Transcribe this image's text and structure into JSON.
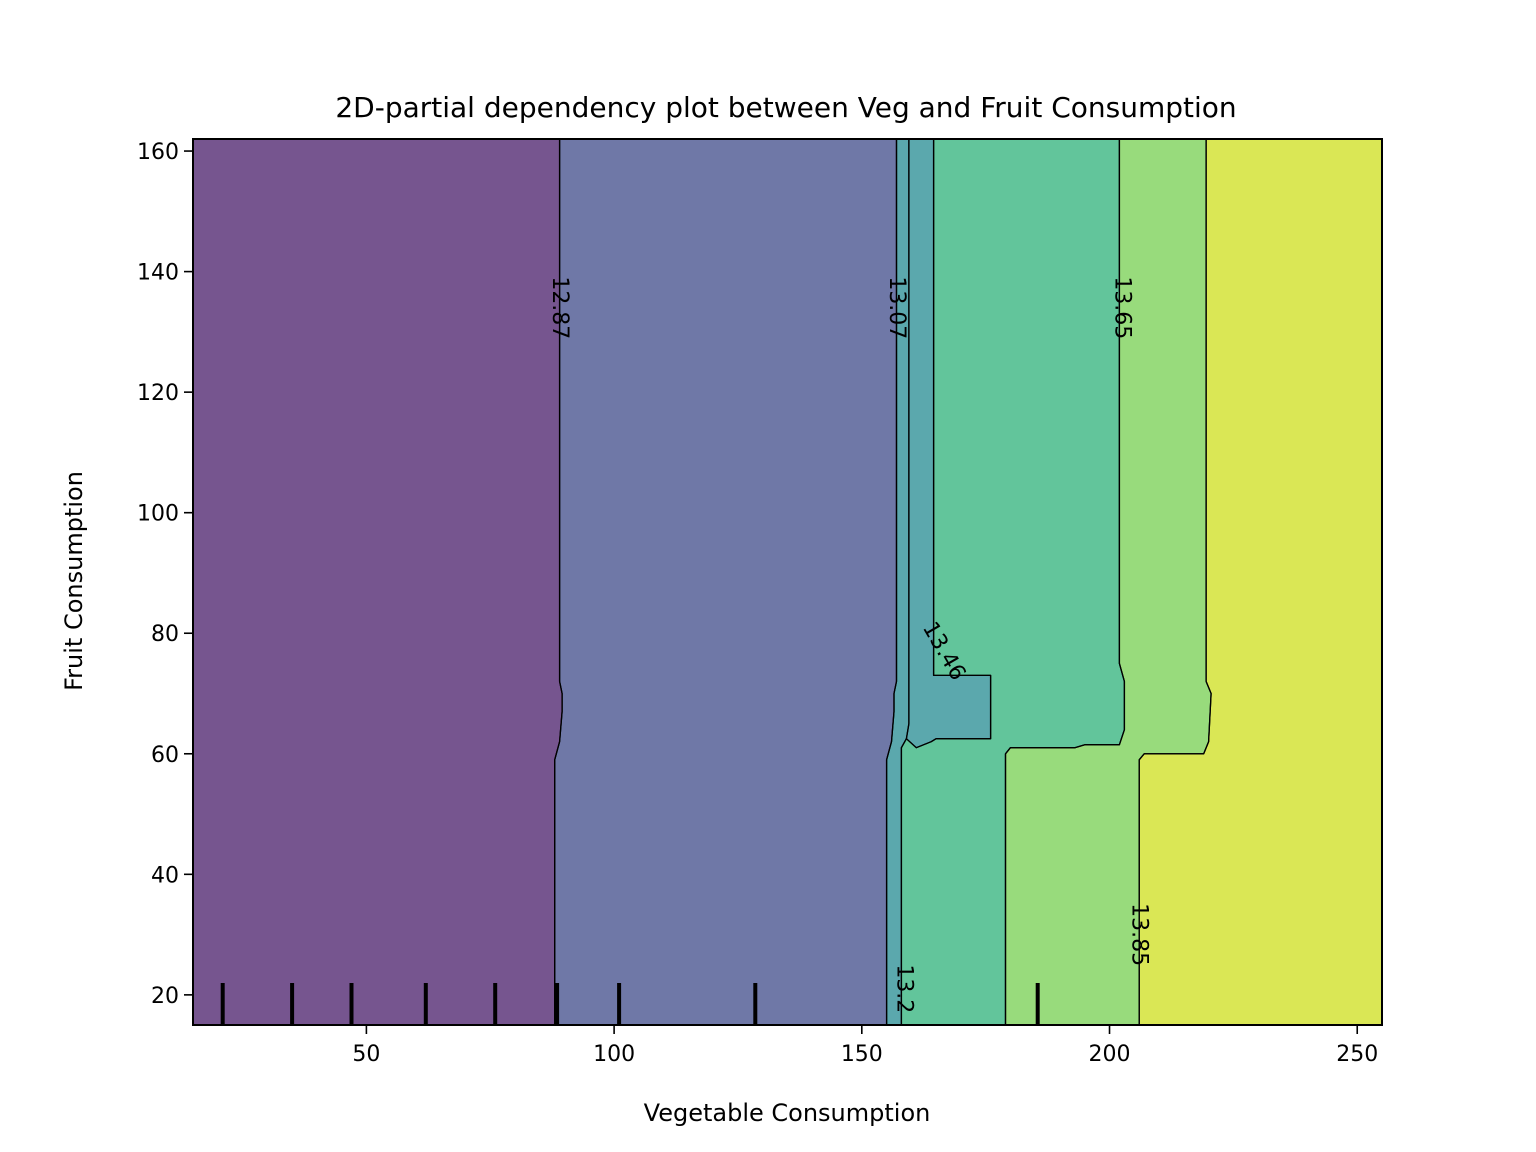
{
  "chart_data": {
    "type": "contour",
    "title": "2D-partial dependency plot between Veg and Fruit Consumption",
    "xlabel": "Vegetable Consumption",
    "ylabel": "Fruit Consumption",
    "xlim": [
      15,
      255
    ],
    "ylim": [
      15,
      162
    ],
    "xticks": [
      50,
      100,
      150,
      200,
      250
    ],
    "yticks": [
      20,
      40,
      60,
      80,
      100,
      120,
      140,
      160
    ],
    "colormap": "viridis",
    "levels": [
      12.87,
      13.07,
      13.2,
      13.46,
      13.65,
      13.85
    ],
    "regions": [
      {
        "level_above": null,
        "color": "#76558f",
        "boundary": [
          [
            15,
            15
          ],
          [
            88,
            15
          ],
          [
            88,
            59
          ],
          [
            89,
            62
          ],
          [
            89.5,
            67
          ],
          [
            89.5,
            70
          ],
          [
            89,
            72
          ],
          [
            89,
            162
          ],
          [
            15,
            162
          ]
        ]
      },
      {
        "level_above": 12.87,
        "color": "#6f78a7",
        "boundary": [
          [
            88,
            15
          ],
          [
            155,
            15
          ],
          [
            155,
            59
          ],
          [
            156,
            62
          ],
          [
            156.5,
            67
          ],
          [
            156.5,
            70
          ],
          [
            157,
            72
          ],
          [
            157,
            162
          ],
          [
            89,
            162
          ],
          [
            89,
            72
          ],
          [
            89.5,
            70
          ],
          [
            89.5,
            67
          ],
          [
            89,
            62
          ],
          [
            88,
            59
          ]
        ]
      },
      {
        "level_above": 13.07,
        "color": "#5ba8ad",
        "boundary": [
          [
            155,
            15
          ],
          [
            158,
            15
          ],
          [
            158,
            61
          ],
          [
            159,
            62.5
          ],
          [
            159.5,
            65
          ],
          [
            159.5,
            162
          ],
          [
            157,
            162
          ],
          [
            157,
            72
          ],
          [
            156.5,
            70
          ],
          [
            156.5,
            67
          ],
          [
            156,
            62
          ],
          [
            155,
            59
          ]
        ]
      },
      {
        "level_above": 13.2,
        "color": "#5ba8ad",
        "boundary": [
          [
            159.5,
            162
          ],
          [
            159.5,
            65
          ],
          [
            159,
            62.5
          ],
          [
            161,
            61
          ],
          [
            164,
            62
          ],
          [
            165,
            62.5
          ],
          [
            176,
            62.5
          ],
          [
            176,
            73
          ],
          [
            164.5,
            73
          ],
          [
            164.5,
            162
          ]
        ]
      },
      {
        "level_above": 13.46,
        "color": "#62c59b",
        "boundary": [
          [
            158,
            15
          ],
          [
            179,
            15
          ],
          [
            179,
            60
          ],
          [
            180,
            61
          ],
          [
            193,
            61
          ],
          [
            195,
            61.5
          ],
          [
            202,
            61.5
          ],
          [
            203,
            64
          ],
          [
            203,
            72
          ],
          [
            202,
            75
          ],
          [
            202,
            162
          ],
          [
            164.5,
            162
          ],
          [
            164.5,
            73
          ],
          [
            176,
            73
          ],
          [
            176,
            62.5
          ],
          [
            165,
            62.5
          ],
          [
            164,
            62
          ],
          [
            161,
            61
          ],
          [
            159,
            62.5
          ],
          [
            158,
            61
          ]
        ]
      },
      {
        "level_above": 13.65,
        "color": "#98db7c",
        "boundary": [
          [
            179,
            15
          ],
          [
            206,
            15
          ],
          [
            206,
            59
          ],
          [
            207,
            60
          ],
          [
            219,
            60
          ],
          [
            220,
            62
          ],
          [
            220.5,
            70
          ],
          [
            219.5,
            72
          ],
          [
            219.5,
            162
          ],
          [
            202,
            162
          ],
          [
            202,
            75
          ],
          [
            203,
            72
          ],
          [
            203,
            64
          ],
          [
            202,
            61.5
          ],
          [
            195,
            61.5
          ],
          [
            193,
            61
          ],
          [
            180,
            61
          ],
          [
            179,
            60
          ]
        ]
      },
      {
        "level_above": 13.85,
        "color": "#dae755",
        "boundary": [
          [
            206,
            15
          ],
          [
            255,
            15
          ],
          [
            255,
            162
          ],
          [
            219.5,
            162
          ],
          [
            219.5,
            72
          ],
          [
            220.5,
            70
          ],
          [
            220,
            62
          ],
          [
            219,
            60
          ],
          [
            207,
            60
          ],
          [
            206,
            59
          ]
        ]
      }
    ],
    "contour_labels": [
      {
        "text": "12.87",
        "x": 89,
        "y": 134,
        "angle": 90
      },
      {
        "text": "13.07",
        "x": 157,
        "y": 134,
        "angle": 90
      },
      {
        "text": "13.65",
        "x": 202.5,
        "y": 134,
        "angle": 90
      },
      {
        "text": "13.46",
        "x": 166.5,
        "y": 77,
        "angle": 60
      },
      {
        "text": "13.2",
        "x": 158.5,
        "y": 21,
        "angle": 90
      },
      {
        "text": "13.85",
        "x": 206,
        "y": 30,
        "angle": 90
      }
    ],
    "rug_x": [
      21,
      35,
      47,
      62,
      76,
      88.5,
      101,
      128.5,
      185.5
    ]
  }
}
